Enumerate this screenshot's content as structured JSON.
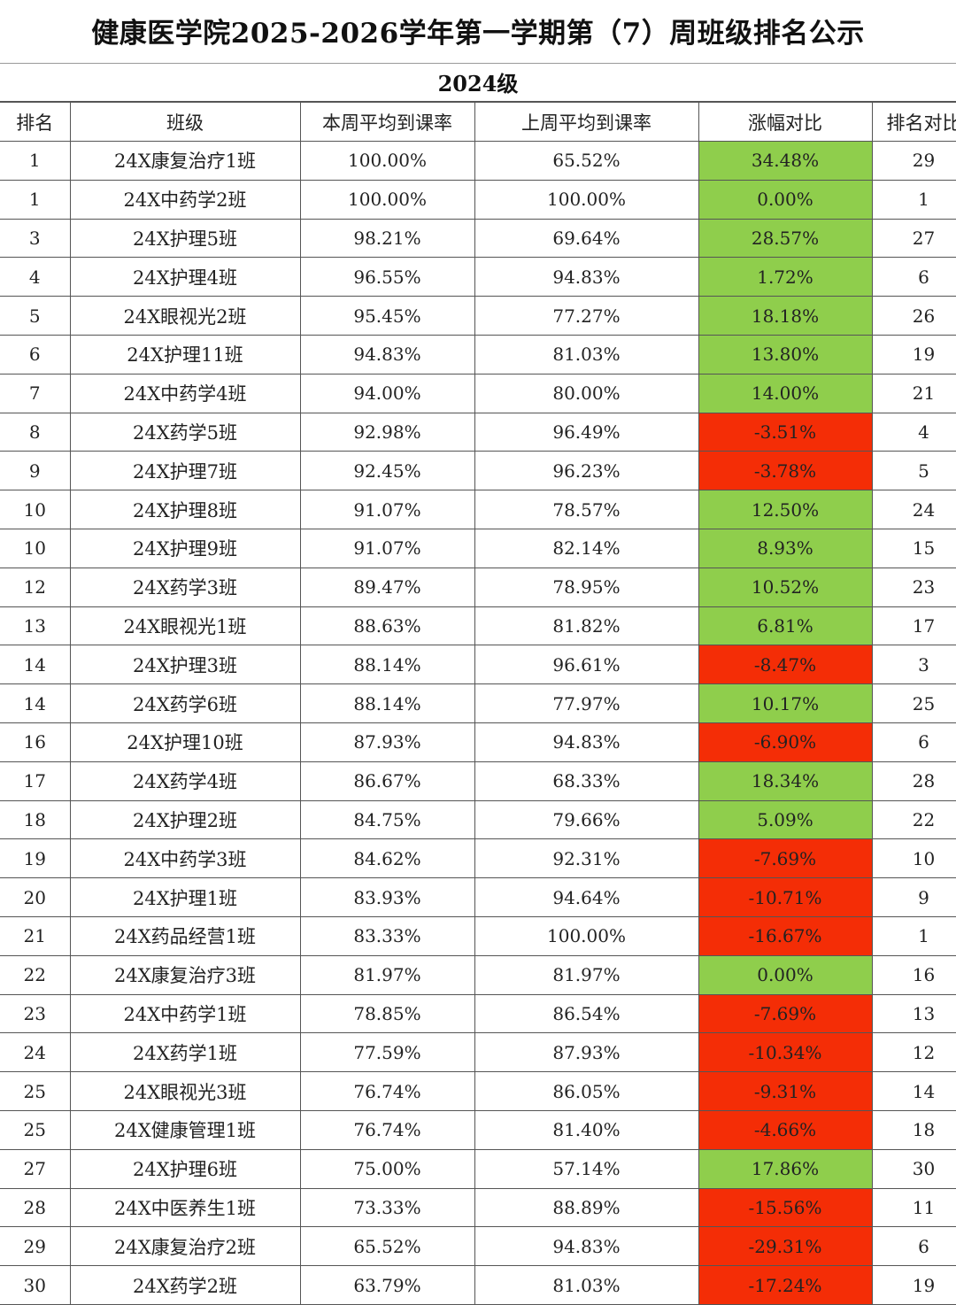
{
  "title": "健康医学院2025-2026学年第一学期第（7）周班级排名公示",
  "grade": "2024级",
  "colors": {
    "increase": "#8fce4c",
    "decrease": "#f42d06"
  },
  "headers": [
    "排名",
    "班级",
    "本周平均到课率",
    "上周平均到课率",
    "涨幅对比",
    "排名对比"
  ],
  "rows": [
    {
      "rank": "1",
      "class": "24X康复治疗1班",
      "this_week": "100.00%",
      "last_week": "65.52%",
      "change": "34.48%",
      "trend": "up",
      "last_rank": "29"
    },
    {
      "rank": "1",
      "class": "24X中药学2班",
      "this_week": "100.00%",
      "last_week": "100.00%",
      "change": "0.00%",
      "trend": "up",
      "last_rank": "1"
    },
    {
      "rank": "3",
      "class": "24X护理5班",
      "this_week": "98.21%",
      "last_week": "69.64%",
      "change": "28.57%",
      "trend": "up",
      "last_rank": "27"
    },
    {
      "rank": "4",
      "class": "24X护理4班",
      "this_week": "96.55%",
      "last_week": "94.83%",
      "change": "1.72%",
      "trend": "up",
      "last_rank": "6"
    },
    {
      "rank": "5",
      "class": "24X眼视光2班",
      "this_week": "95.45%",
      "last_week": "77.27%",
      "change": "18.18%",
      "trend": "up",
      "last_rank": "26"
    },
    {
      "rank": "6",
      "class": "24X护理11班",
      "this_week": "94.83%",
      "last_week": "81.03%",
      "change": "13.80%",
      "trend": "up",
      "last_rank": "19"
    },
    {
      "rank": "7",
      "class": "24X中药学4班",
      "this_week": "94.00%",
      "last_week": "80.00%",
      "change": "14.00%",
      "trend": "up",
      "last_rank": "21"
    },
    {
      "rank": "8",
      "class": "24X药学5班",
      "this_week": "92.98%",
      "last_week": "96.49%",
      "change": "-3.51%",
      "trend": "down",
      "last_rank": "4"
    },
    {
      "rank": "9",
      "class": "24X护理7班",
      "this_week": "92.45%",
      "last_week": "96.23%",
      "change": "-3.78%",
      "trend": "down",
      "last_rank": "5"
    },
    {
      "rank": "10",
      "class": "24X护理8班",
      "this_week": "91.07%",
      "last_week": "78.57%",
      "change": "12.50%",
      "trend": "up",
      "last_rank": "24"
    },
    {
      "rank": "10",
      "class": "24X护理9班",
      "this_week": "91.07%",
      "last_week": "82.14%",
      "change": "8.93%",
      "trend": "up",
      "last_rank": "15"
    },
    {
      "rank": "12",
      "class": "24X药学3班",
      "this_week": "89.47%",
      "last_week": "78.95%",
      "change": "10.52%",
      "trend": "up",
      "last_rank": "23"
    },
    {
      "rank": "13",
      "class": "24X眼视光1班",
      "this_week": "88.63%",
      "last_week": "81.82%",
      "change": "6.81%",
      "trend": "up",
      "last_rank": "17"
    },
    {
      "rank": "14",
      "class": "24X护理3班",
      "this_week": "88.14%",
      "last_week": "96.61%",
      "change": "-8.47%",
      "trend": "down",
      "last_rank": "3"
    },
    {
      "rank": "14",
      "class": "24X药学6班",
      "this_week": "88.14%",
      "last_week": "77.97%",
      "change": "10.17%",
      "trend": "up",
      "last_rank": "25"
    },
    {
      "rank": "16",
      "class": "24X护理10班",
      "this_week": "87.93%",
      "last_week": "94.83%",
      "change": "-6.90%",
      "trend": "down",
      "last_rank": "6"
    },
    {
      "rank": "17",
      "class": "24X药学4班",
      "this_week": "86.67%",
      "last_week": "68.33%",
      "change": "18.34%",
      "trend": "up",
      "last_rank": "28"
    },
    {
      "rank": "18",
      "class": "24X护理2班",
      "this_week": "84.75%",
      "last_week": "79.66%",
      "change": "5.09%",
      "trend": "up",
      "last_rank": "22"
    },
    {
      "rank": "19",
      "class": "24X中药学3班",
      "this_week": "84.62%",
      "last_week": "92.31%",
      "change": "-7.69%",
      "trend": "down",
      "last_rank": "10"
    },
    {
      "rank": "20",
      "class": "24X护理1班",
      "this_week": "83.93%",
      "last_week": "94.64%",
      "change": "-10.71%",
      "trend": "down",
      "last_rank": "9"
    },
    {
      "rank": "21",
      "class": "24X药品经营1班",
      "this_week": "83.33%",
      "last_week": "100.00%",
      "change": "-16.67%",
      "trend": "down",
      "last_rank": "1"
    },
    {
      "rank": "22",
      "class": "24X康复治疗3班",
      "this_week": "81.97%",
      "last_week": "81.97%",
      "change": "0.00%",
      "trend": "up",
      "last_rank": "16"
    },
    {
      "rank": "23",
      "class": "24X中药学1班",
      "this_week": "78.85%",
      "last_week": "86.54%",
      "change": "-7.69%",
      "trend": "down",
      "last_rank": "13"
    },
    {
      "rank": "24",
      "class": "24X药学1班",
      "this_week": "77.59%",
      "last_week": "87.93%",
      "change": "-10.34%",
      "trend": "down",
      "last_rank": "12"
    },
    {
      "rank": "25",
      "class": "24X眼视光3班",
      "this_week": "76.74%",
      "last_week": "86.05%",
      "change": "-9.31%",
      "trend": "down",
      "last_rank": "14"
    },
    {
      "rank": "25",
      "class": "24X健康管理1班",
      "this_week": "76.74%",
      "last_week": "81.40%",
      "change": "-4.66%",
      "trend": "down",
      "last_rank": "18"
    },
    {
      "rank": "27",
      "class": "24X护理6班",
      "this_week": "75.00%",
      "last_week": "57.14%",
      "change": "17.86%",
      "trend": "up",
      "last_rank": "30"
    },
    {
      "rank": "28",
      "class": "24X中医养生1班",
      "this_week": "73.33%",
      "last_week": "88.89%",
      "change": "-15.56%",
      "trend": "down",
      "last_rank": "11"
    },
    {
      "rank": "29",
      "class": "24X康复治疗2班",
      "this_week": "65.52%",
      "last_week": "94.83%",
      "change": "-29.31%",
      "trend": "down",
      "last_rank": "6"
    },
    {
      "rank": "30",
      "class": "24X药学2班",
      "this_week": "63.79%",
      "last_week": "81.03%",
      "change": "-17.24%",
      "trend": "down",
      "last_rank": "19"
    }
  ]
}
